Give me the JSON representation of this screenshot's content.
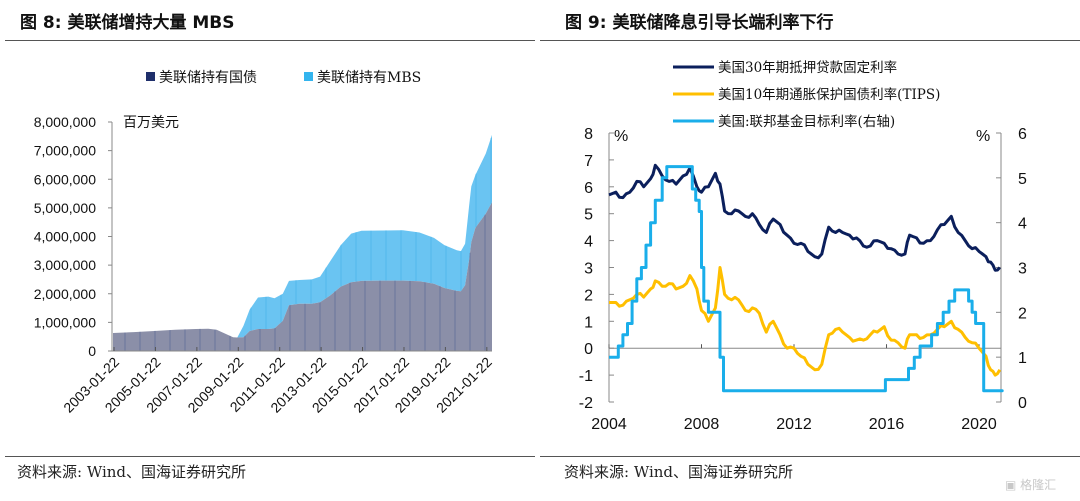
{
  "left": {
    "title": "图 8:  美联储增持大量 MBS",
    "source": "资料来源:  Wind、国海证券研究所"
  },
  "right": {
    "title": "图 9:  美联储降息引导长端利率下行",
    "source": "资料来源:  Wind、国海证券研究所"
  },
  "watermark": "格隆汇",
  "chart_data": [
    {
      "type": "area",
      "stacked": true,
      "title": "美联储增持大量 MBS",
      "unit_label": "百万美元",
      "ylim": [
        0,
        8000000
      ],
      "yticks": [
        "0",
        "1,000,000",
        "2,000,000",
        "3,000,000",
        "4,000,000",
        "5,000,000",
        "6,000,000",
        "7,000,000",
        "8,000,000"
      ],
      "xticks": [
        "2003-01-22",
        "2005-01-22",
        "2007-01-22",
        "2009-01-22",
        "2011-01-22",
        "2013-01-22",
        "2015-01-22",
        "2017-01-22",
        "2019-01-22",
        "2021-01-22"
      ],
      "legend": "top",
      "x": [
        2003.0,
        2004.0,
        2005.0,
        2006.0,
        2007.0,
        2007.6,
        2008.0,
        2008.8,
        2009.0,
        2009.3,
        2009.6,
        2010.0,
        2010.5,
        2010.8,
        2011.2,
        2011.5,
        2012.0,
        2012.6,
        2013.0,
        2013.5,
        2014.0,
        2014.5,
        2015.0,
        2016.0,
        2017.0,
        2017.8,
        2018.5,
        2019.0,
        2019.6,
        2019.8,
        2020.0,
        2020.2,
        2020.3,
        2020.5,
        2021.0,
        2021.3
      ],
      "series": [
        {
          "name": "美联储持有国债",
          "color": "#1f2f6b",
          "values": [
            630000,
            660000,
            700000,
            740000,
            770000,
            780000,
            740000,
            480000,
            470000,
            480000,
            700000,
            770000,
            770000,
            790000,
            1050000,
            1600000,
            1650000,
            1650000,
            1700000,
            1950000,
            2250000,
            2400000,
            2450000,
            2460000,
            2460000,
            2440000,
            2350000,
            2200000,
            2100000,
            2090000,
            2300000,
            3200000,
            3800000,
            4300000,
            4800000,
            5200000
          ]
        },
        {
          "name": "美联储持有MBS",
          "color": "#33b4ee",
          "values": [
            0,
            0,
            0,
            0,
            0,
            0,
            0,
            0,
            0,
            400000,
            750000,
            1100000,
            1130000,
            1050000,
            950000,
            850000,
            830000,
            850000,
            900000,
            1200000,
            1450000,
            1700000,
            1750000,
            1750000,
            1760000,
            1700000,
            1600000,
            1500000,
            1420000,
            1400000,
            1450000,
            1900000,
            1950000,
            1850000,
            2100000,
            2350000
          ]
        }
      ]
    },
    {
      "type": "line",
      "title": "美联储降息引导长端利率下行",
      "left_unit": "%",
      "right_unit": "%",
      "ylim_left": [
        -2,
        8
      ],
      "ylim_right": [
        0,
        6
      ],
      "yticks_left": [
        "8",
        "7",
        "6",
        "5",
        "4",
        "3",
        "2",
        "1",
        "0",
        "-1",
        "-2"
      ],
      "yticks_right": [
        "6",
        "5",
        "4",
        "3",
        "2",
        "1",
        "0"
      ],
      "xticks": [
        "2004",
        "2008",
        "2012",
        "2016",
        "2020"
      ],
      "legend": "top",
      "series": [
        {
          "name": "美国30年期抵押贷款固定利率",
          "color": "#0b1f5c",
          "axis": "left",
          "x": [
            2004.0,
            2004.3,
            2004.6,
            2004.9,
            2005.2,
            2005.5,
            2005.8,
            2006.0,
            2006.3,
            2006.6,
            2006.9,
            2007.2,
            2007.5,
            2007.8,
            2008.0,
            2008.3,
            2008.6,
            2008.8,
            2009.0,
            2009.3,
            2009.6,
            2009.9,
            2010.2,
            2010.5,
            2010.8,
            2011.1,
            2011.4,
            2011.7,
            2012.0,
            2012.3,
            2012.6,
            2012.9,
            2013.2,
            2013.5,
            2013.8,
            2014.1,
            2014.4,
            2014.7,
            2015.0,
            2015.3,
            2015.6,
            2015.9,
            2016.2,
            2016.5,
            2016.8,
            2017.0,
            2017.3,
            2017.6,
            2017.9,
            2018.2,
            2018.5,
            2018.8,
            2019.1,
            2019.4,
            2019.7,
            2020.0,
            2020.3,
            2020.5,
            2020.7,
            2020.9
          ],
          "values": [
            5.7,
            5.8,
            5.6,
            5.8,
            6.2,
            6.0,
            6.3,
            6.8,
            6.4,
            6.2,
            6.1,
            6.4,
            6.7,
            6.0,
            5.8,
            6.0,
            6.5,
            6.1,
            5.1,
            5.0,
            5.1,
            4.9,
            5.0,
            4.6,
            4.3,
            4.8,
            4.6,
            4.2,
            3.9,
            3.9,
            3.6,
            3.4,
            3.5,
            4.5,
            4.3,
            4.3,
            4.2,
            4.1,
            3.8,
            3.8,
            4.0,
            3.9,
            3.7,
            3.5,
            3.5,
            4.2,
            4.1,
            3.9,
            4.0,
            4.4,
            4.6,
            4.9,
            4.3,
            4.0,
            3.7,
            3.6,
            3.4,
            3.2,
            2.9,
            3.0
          ]
        },
        {
          "name": "美国10年期通胀保护国债利率(TIPS)",
          "legend_label": "美国10年期通胀保护国债利率(TIPS)",
          "color": "#ffbf00",
          "axis": "left",
          "x": [
            2004.0,
            2004.3,
            2004.6,
            2004.9,
            2005.2,
            2005.5,
            2005.8,
            2006.0,
            2006.3,
            2006.6,
            2006.9,
            2007.2,
            2007.5,
            2007.8,
            2008.0,
            2008.3,
            2008.6,
            2008.8,
            2009.0,
            2009.3,
            2009.6,
            2009.9,
            2010.2,
            2010.5,
            2010.8,
            2011.1,
            2011.4,
            2011.7,
            2012.0,
            2012.3,
            2012.6,
            2012.9,
            2013.2,
            2013.5,
            2013.8,
            2014.1,
            2014.4,
            2014.7,
            2015.0,
            2015.3,
            2015.6,
            2015.9,
            2016.2,
            2016.5,
            2016.8,
            2017.0,
            2017.3,
            2017.6,
            2017.9,
            2018.2,
            2018.5,
            2018.8,
            2019.1,
            2019.4,
            2019.7,
            2020.0,
            2020.3,
            2020.5,
            2020.7,
            2020.9
          ],
          "values": [
            1.7,
            1.7,
            1.6,
            1.8,
            2.0,
            1.9,
            2.2,
            2.5,
            2.3,
            2.4,
            2.2,
            2.3,
            2.7,
            2.2,
            1.4,
            1.0,
            1.5,
            3.0,
            2.0,
            1.8,
            1.8,
            1.4,
            1.5,
            1.3,
            0.6,
            1.0,
            0.5,
            0.0,
            0.0,
            -0.3,
            -0.6,
            -0.8,
            -0.6,
            0.5,
            0.7,
            0.6,
            0.4,
            0.3,
            0.3,
            0.5,
            0.6,
            0.8,
            0.3,
            0.2,
            0.0,
            0.5,
            0.5,
            0.4,
            0.5,
            0.7,
            0.8,
            1.0,
            0.7,
            0.4,
            0.2,
            0.0,
            -0.3,
            -0.8,
            -1.0,
            -0.8
          ]
        },
        {
          "name": "美国:联邦基金目标利率(右轴)",
          "legend_label": "美国:联邦基金目标利率(右轴)",
          "color": "#1aaeea",
          "axis": "right",
          "step": true,
          "x": [
            2004.0,
            2004.4,
            2004.6,
            2004.8,
            2005.0,
            2005.2,
            2005.4,
            2005.6,
            2005.8,
            2006.0,
            2006.3,
            2006.5,
            2007.6,
            2007.75,
            2007.9,
            2008.0,
            2008.1,
            2008.3,
            2008.8,
            2008.95,
            2015.95,
            2016.95,
            2017.2,
            2017.45,
            2017.95,
            2018.2,
            2018.45,
            2018.7,
            2018.95,
            2019.55,
            2019.7,
            2019.85,
            2020.2,
            2021.0
          ],
          "values": [
            1.0,
            1.25,
            1.5,
            1.75,
            2.25,
            2.75,
            3.0,
            3.5,
            4.0,
            4.5,
            5.0,
            5.25,
            4.75,
            4.5,
            4.25,
            3.0,
            2.25,
            2.0,
            1.0,
            0.25,
            0.5,
            0.75,
            1.0,
            1.25,
            1.5,
            1.75,
            2.0,
            2.25,
            2.5,
            2.25,
            2.0,
            1.75,
            0.25,
            0.25
          ]
        }
      ]
    }
  ]
}
